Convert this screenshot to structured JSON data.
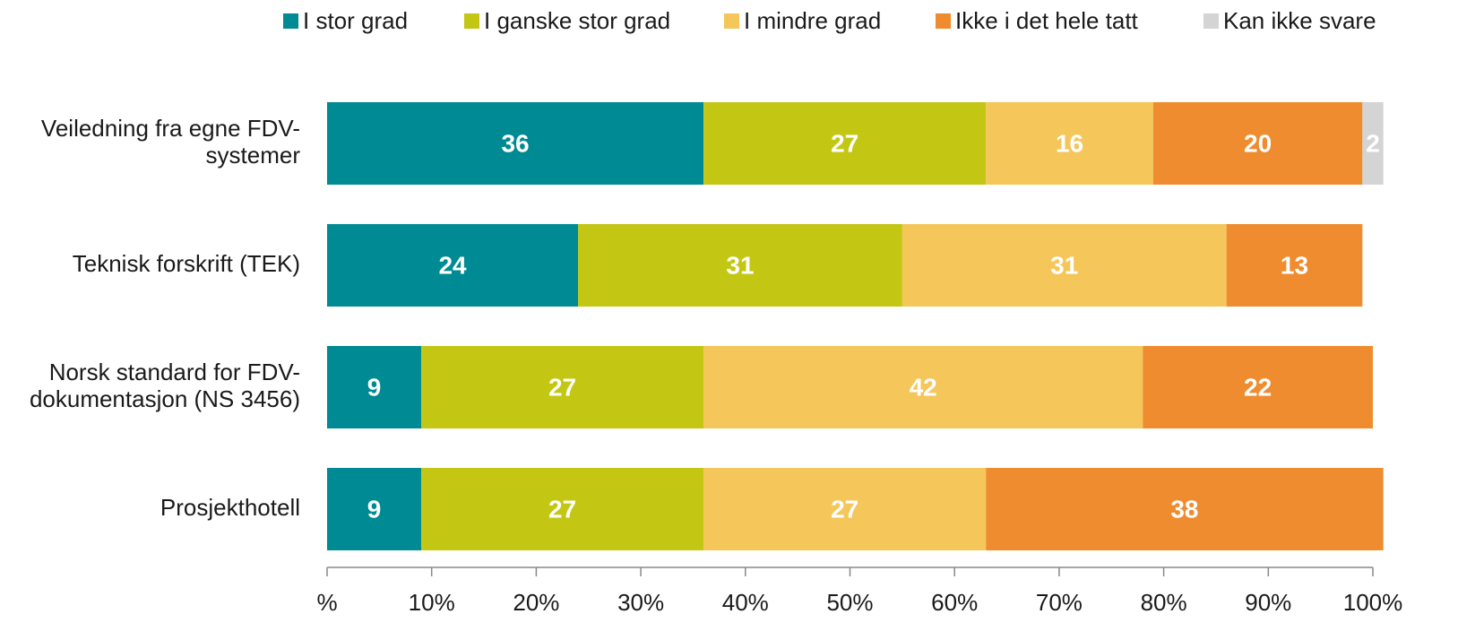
{
  "chart_data": {
    "type": "stacked-bar-horizontal",
    "categories": [
      "Veiledning fra egne FDV-\nsystemer",
      "Teknisk forskrift (TEK)",
      "Norsk standard for FDV-\ndokumentasjon (NS 3456)",
      "Prosjekthotell"
    ],
    "series": [
      {
        "name": "I stor grad",
        "color": "#008a93",
        "values": [
          36,
          24,
          9,
          9
        ]
      },
      {
        "name": "I ganske stor grad",
        "color": "#c3c714",
        "values": [
          27,
          31,
          27,
          27
        ]
      },
      {
        "name": "I mindre grad",
        "color": "#f5c65a",
        "values": [
          16,
          31,
          42,
          27
        ]
      },
      {
        "name": "Ikke i det hele tatt",
        "color": "#ef8c2f",
        "values": [
          20,
          13,
          22,
          38
        ]
      },
      {
        "name": "Kan ikke svare",
        "color": "#d4d4d4",
        "values": [
          2,
          null,
          null,
          null
        ]
      }
    ],
    "xlim": [
      0,
      100
    ],
    "xticks": [
      {
        "value": 0,
        "label": "%"
      },
      {
        "value": 10,
        "label": "10%"
      },
      {
        "value": 20,
        "label": "20%"
      },
      {
        "value": 30,
        "label": "30%"
      },
      {
        "value": 40,
        "label": "40%"
      },
      {
        "value": 50,
        "label": "50%"
      },
      {
        "value": 60,
        "label": "60%"
      },
      {
        "value": 70,
        "label": "70%"
      },
      {
        "value": 80,
        "label": "80%"
      },
      {
        "value": 90,
        "label": "90%"
      },
      {
        "value": 100,
        "label": "100%"
      }
    ],
    "legend": "top"
  }
}
